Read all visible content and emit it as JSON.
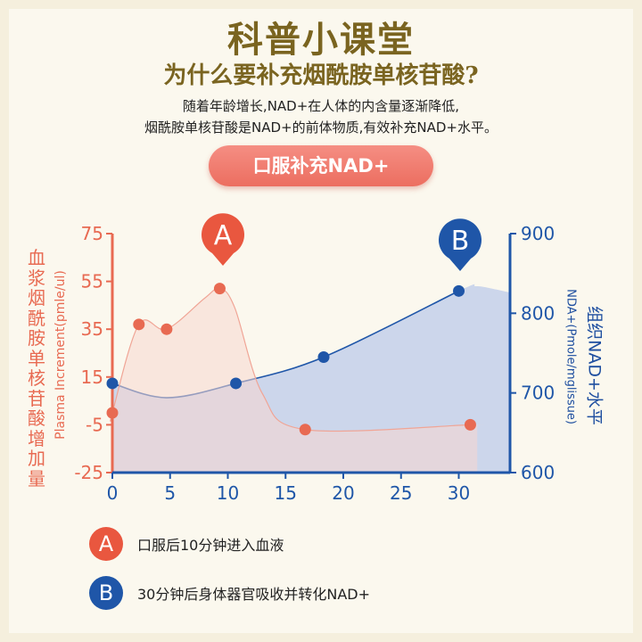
{
  "header": {
    "title": "科普小课堂",
    "subtitle": "为什么要补充烟酰胺单核苷酸?",
    "desc_line1": "随着年龄增长,NAD+在人体的内含量逐渐降低,",
    "desc_line2": "烟酰胺单核苷酸是NAD+的前体物质,有效补充NAD+水平。",
    "button_label": "口服补充NAD+"
  },
  "colors": {
    "plasma": "#e86a52",
    "tissue": "#1f56a8",
    "plasma_fill": "#f7d7cf",
    "tissue_fill": "#c7d2ea"
  },
  "chart_data": {
    "type": "line",
    "x_ticks": [
      "0",
      "5",
      "10",
      "15",
      "20",
      "25",
      "30"
    ],
    "xlim": [
      0,
      34
    ],
    "y_left": {
      "label_cn": "血浆烟酰胺单核苷酸增加量",
      "label_en": "Plasma Increment(pmle/ul)",
      "ticks": [
        "75",
        "55",
        "35",
        "15",
        "-5",
        "-25"
      ],
      "lim": [
        -25,
        75
      ]
    },
    "y_right": {
      "label_en": "NDA+(Pmole/mglissue)",
      "label_cn": "组织NAD+水平",
      "ticks": [
        "900",
        "800",
        "700",
        "600"
      ],
      "lim": [
        600,
        900
      ]
    },
    "series": [
      {
        "axis": "left",
        "points": [
          {
            "x": 0,
            "y": 0
          },
          {
            "x": 2.3,
            "y": 37
          },
          {
            "x": 4.7,
            "y": 35
          },
          {
            "x": 9.3,
            "y": 52
          },
          {
            "x": 16.7,
            "y": -7
          },
          {
            "x": 31,
            "y": -5
          }
        ]
      },
      {
        "axis": "right",
        "points": [
          {
            "x": 0,
            "y": 712
          },
          {
            "x": 10.7,
            "y": 712
          },
          {
            "x": 18.3,
            "y": 745
          },
          {
            "x": 30,
            "y": 828
          }
        ]
      }
    ],
    "markers": [
      {
        "label": "A",
        "x": 9.3
      },
      {
        "label": "B",
        "x": 30
      }
    ]
  },
  "legend": {
    "a_badge": "A",
    "a_text": "口服后10分钟进入血液",
    "b_badge": "B",
    "b_text": "30分钟后身体器官吸收并转化NAD+"
  }
}
